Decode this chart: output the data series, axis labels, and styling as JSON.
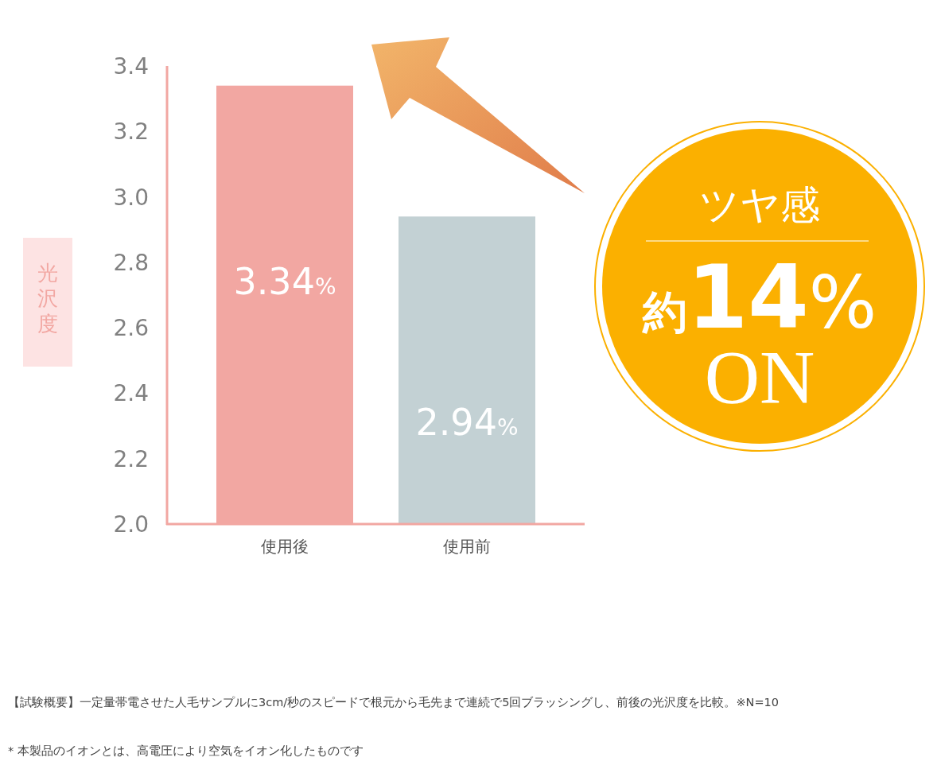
{
  "chart_data": {
    "type": "bar",
    "ylabel": "光沢度",
    "categories": [
      "使用後",
      "使用前"
    ],
    "values": [
      3.34,
      2.94
    ],
    "colors": [
      "#f2a7a2",
      "#c3d1d4"
    ],
    "value_labels": [
      "3.34%",
      "2.94%"
    ],
    "ylim": [
      2.0,
      3.4
    ],
    "yticks": [
      {
        "value": 2,
        "label": "2.0"
      },
      {
        "value": 2.2,
        "label": "2.2"
      },
      {
        "value": 2.4,
        "label": "2.4"
      },
      {
        "value": 2.6,
        "label": "2.6"
      },
      {
        "value": 2.8,
        "label": "2.8"
      },
      {
        "value": 3,
        "label": "3.0"
      },
      {
        "value": 3.2,
        "label": "3.2"
      },
      {
        "value": 3.4,
        "label": "3.4"
      }
    ],
    "grid": false,
    "annotations": [
      "ツヤ感",
      "約14%",
      "ON",
      "【試験概要】一定量帯電させた人毛サンプルに3cm/秒のスピードで根元から毛先まで連続で5回ブラッシングし、前後の光沢度を比較。※N=10",
      "*  本製品のイオンとは、高電圧により空気をイオン化したものです"
    ]
  }
}
